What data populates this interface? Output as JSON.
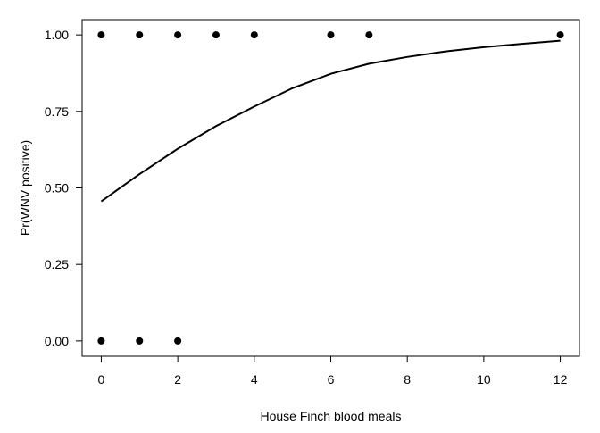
{
  "chart_data": {
    "type": "scatter",
    "title": "",
    "xlabel": "House Finch blood meals",
    "ylabel": "Pr(WNV positive)",
    "xlim": [
      -0.5,
      12.5
    ],
    "ylim": [
      -0.05,
      1.05
    ],
    "x_ticks": [
      0,
      2,
      4,
      6,
      8,
      10,
      12
    ],
    "x_tick_labels": [
      "0",
      "2",
      "4",
      "6",
      "8",
      "10",
      "12"
    ],
    "y_ticks": [
      0,
      0.25,
      0.5,
      0.75,
      1
    ],
    "y_tick_labels": [
      "0.00",
      "0.25",
      "0.50",
      "0.75",
      "1.00"
    ],
    "grid": false,
    "legend": "none",
    "series": [
      {
        "type": "scatter",
        "x": [
          0,
          1,
          2,
          3,
          4,
          6,
          7,
          12,
          0,
          1,
          2
        ],
        "y": [
          1,
          1,
          1,
          1,
          1,
          1,
          1,
          1,
          0,
          0,
          0
        ]
      },
      {
        "type": "line",
        "x": [
          0,
          1,
          2,
          3,
          4,
          5,
          6,
          7,
          8,
          9,
          10,
          11,
          12
        ],
        "y": [
          0.456,
          0.545,
          0.628,
          0.702,
          0.766,
          0.826,
          0.873,
          0.906,
          0.928,
          0.946,
          0.96,
          0.971,
          0.981
        ]
      }
    ]
  }
}
